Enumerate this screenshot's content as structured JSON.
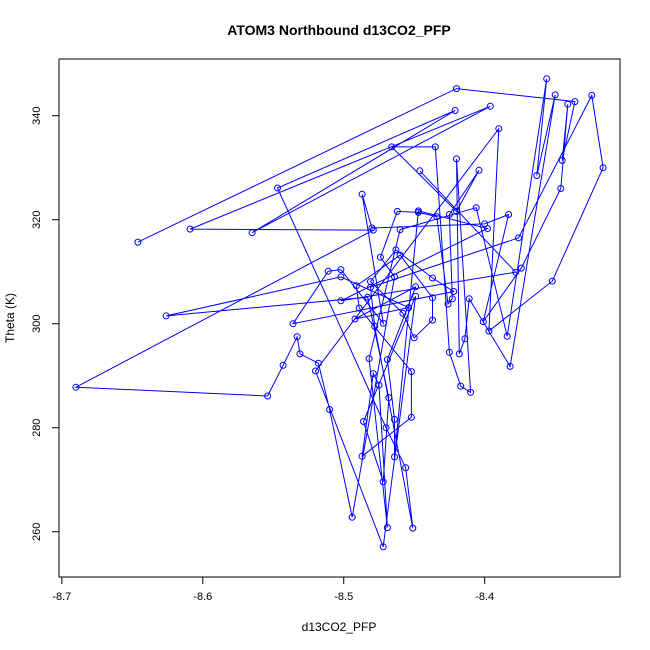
{
  "chart_data": {
    "type": "line",
    "title": "ATOM3 Northbound d13CO2_PFP",
    "xlabel": "d13CO2_PFP",
    "ylabel": "Theta (K)",
    "xlim": [
      -8.702,
      -8.304
    ],
    "ylim": [
      251.3,
      350.9
    ],
    "xticks": [
      -8.7,
      -8.6,
      -8.5,
      -8.4
    ],
    "xtick_labels": [
      "-8.7",
      "-8.6",
      "-8.5",
      "-8.4"
    ],
    "yticks": [
      260,
      280,
      300,
      320,
      340
    ],
    "ytick_labels": [
      "260",
      "280",
      "300",
      "320",
      "340"
    ],
    "grid": false,
    "line_color": "#0000ff",
    "marker": "open-circle",
    "series": [
      {
        "points": [
          [
            -8.646,
            315.7
          ],
          [
            -8.42,
            345.2
          ],
          [
            -8.336,
            342.7
          ],
          [
            -8.345,
            331.4
          ],
          [
            -8.341,
            342.2
          ],
          [
            -8.346,
            326.0
          ],
          [
            -8.374,
            310.7
          ],
          [
            -8.401,
            300.4
          ],
          [
            -8.383,
            321.0
          ],
          [
            -8.4,
            319.2
          ],
          [
            -8.48,
            318.4
          ],
          [
            -8.487,
            324.9
          ],
          [
            -8.472,
            300.1
          ],
          [
            -8.502,
            310.4
          ],
          [
            -8.511,
            310.1
          ],
          [
            -8.536,
            300.0
          ],
          [
            -8.422,
            306.2
          ],
          [
            -8.437,
            308.8
          ],
          [
            -8.463,
            314.2
          ],
          [
            -8.481,
            308.1
          ],
          [
            -8.458,
            302.0
          ],
          [
            -8.45,
            297.3
          ],
          [
            -8.437,
            300.7
          ],
          [
            -8.437,
            305.0
          ],
          [
            -8.46,
            313.2
          ],
          [
            -8.491,
            307.3
          ],
          [
            -8.489,
            303.0
          ],
          [
            -8.452,
            290.8
          ],
          [
            -8.452,
            282.0
          ],
          [
            -8.487,
            274.5
          ],
          [
            -8.479,
            290.4
          ],
          [
            -8.475,
            288.2
          ],
          [
            -8.469,
            260.8
          ],
          [
            -8.482,
            293.3
          ],
          [
            -8.46,
            318.1
          ],
          [
            -8.406,
            322.3
          ],
          [
            -8.384,
            297.6
          ],
          [
            -8.356,
            347.1
          ],
          [
            -8.363,
            328.5
          ],
          [
            -8.35,
            344.0
          ],
          [
            -8.382,
            291.8
          ],
          [
            -8.411,
            304.8
          ],
          [
            -8.414,
            297.1
          ],
          [
            -8.418,
            294.2
          ],
          [
            -8.42,
            331.7
          ],
          [
            -8.41,
            286.8
          ],
          [
            -8.417,
            288.0
          ],
          [
            -8.425,
            294.5
          ],
          [
            -8.435,
            334.0
          ],
          [
            -8.466,
            334.0
          ],
          [
            -8.42,
            321.6
          ],
          [
            -8.404,
            329.5
          ],
          [
            -8.425,
            321.0
          ],
          [
            -8.423,
            304.8
          ],
          [
            -8.426,
            303.8
          ],
          [
            -8.434,
            320.6
          ],
          [
            -8.447,
            321.4
          ],
          [
            -8.462,
            321.6
          ],
          [
            -8.474,
            312.8
          ],
          [
            -8.464,
            309.0
          ],
          [
            -8.494,
            262.8
          ],
          [
            -8.51,
            283.5
          ],
          [
            -8.518,
            292.4
          ],
          [
            -8.531,
            294.2
          ],
          [
            -8.533,
            297.5
          ],
          [
            -8.543,
            292.0
          ],
          [
            -8.554,
            286.1
          ],
          [
            -8.69,
            287.8
          ],
          [
            -8.479,
            318.0
          ],
          [
            -8.609,
            318.2
          ],
          [
            -8.396,
            341.8
          ],
          [
            -8.565,
            317.5
          ],
          [
            -8.421,
            341.0
          ],
          [
            -8.547,
            326.1
          ],
          [
            -8.47,
            280.0
          ],
          [
            -8.456,
            272.3
          ],
          [
            -8.451,
            260.7
          ],
          [
            -8.478,
            299.5
          ],
          [
            -8.481,
            307.0
          ],
          [
            -8.376,
            316.5
          ],
          [
            -8.324,
            343.9
          ],
          [
            -8.316,
            330.0
          ],
          [
            -8.352,
            308.2
          ],
          [
            -8.397,
            298.6
          ],
          [
            -8.39,
            337.5
          ],
          [
            -8.52,
            290.9
          ],
          [
            -8.472,
            257.1
          ],
          [
            -8.449,
            305.3
          ],
          [
            -8.486,
            281.2
          ],
          [
            -8.472,
            269.6
          ],
          [
            -8.468,
            285.8
          ],
          [
            -8.483,
            305.1
          ],
          [
            -8.626,
            301.5
          ],
          [
            -8.502,
            309.0
          ],
          [
            -8.454,
            303.1
          ],
          [
            -8.492,
            300.9
          ],
          [
            -8.449,
            307.1
          ],
          [
            -8.469,
            293.1
          ],
          [
            -8.464,
            281.6
          ],
          [
            -8.464,
            274.4
          ],
          [
            -8.447,
            321.7
          ],
          [
            -8.398,
            318.3
          ],
          [
            -8.502,
            304.4
          ],
          [
            -8.378,
            309.9
          ],
          [
            -8.446,
            329.4
          ]
        ]
      }
    ]
  }
}
